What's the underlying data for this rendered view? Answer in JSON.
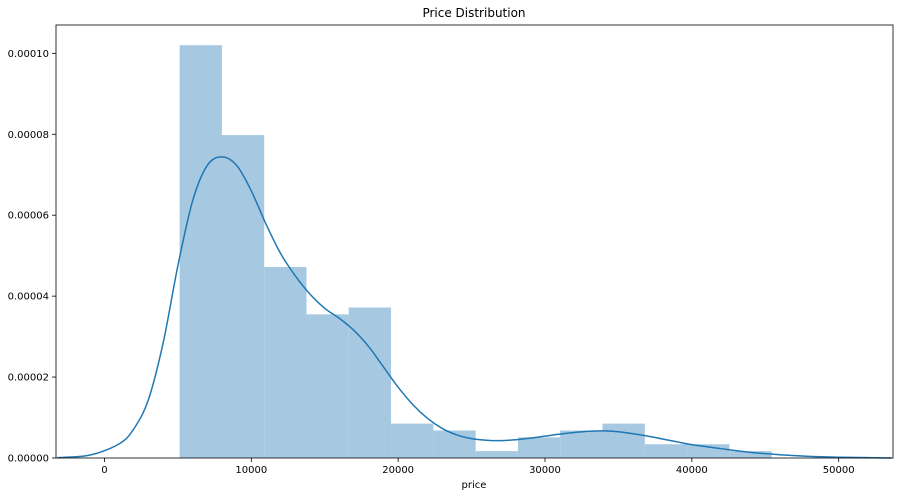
{
  "chart_data": {
    "type": "bar",
    "title": "Price Distribution",
    "xlabel": "price",
    "ylabel": "",
    "xlim": [
      -3300,
      53700
    ],
    "ylim": [
      0,
      0.000107
    ],
    "x_ticks": [
      0,
      10000,
      20000,
      30000,
      40000,
      50000
    ],
    "y_ticks": [
      0,
      2e-05,
      4e-05,
      6e-05,
      8e-05,
      0.0001
    ],
    "x_tick_labels": [
      "0",
      "10000",
      "20000",
      "30000",
      "40000",
      "50000"
    ],
    "y_tick_labels": [
      "0.00000",
      "0.00002",
      "0.00004",
      "0.00006",
      "0.00008",
      "0.00010"
    ],
    "grid": false,
    "histogram": {
      "bin_edges": [
        5118,
        7998,
        10878,
        13758,
        16638,
        19518,
        22398,
        25278,
        28158,
        31038,
        33918,
        36798,
        39678,
        42558,
        45438
      ],
      "density": [
        0.000102,
        7.98e-05,
        4.72e-05,
        3.55e-05,
        3.72e-05,
        8.5e-06,
        6.8e-06,
        1.7e-06,
        5.1e-06,
        6.8e-06,
        8.5e-06,
        3.4e-06,
        3.4e-06,
        1.7e-06
      ],
      "color": "#a6c8e0"
    },
    "kde": {
      "color": "#1f77b4",
      "x": [
        -3200,
        -1000,
        1000,
        2000,
        3000,
        4000,
        5000,
        6000,
        7000,
        8000,
        9000,
        10000,
        11000,
        12000,
        13000,
        14000,
        15000,
        16000,
        17000,
        18000,
        19000,
        20000,
        21000,
        22000,
        23000,
        24000,
        25000,
        26000,
        27000,
        28000,
        29000,
        30000,
        31000,
        32000,
        33000,
        34000,
        35000,
        36000,
        37000,
        38000,
        39000,
        40000,
        42000,
        44000,
        46000,
        48000,
        50000,
        52000,
        53600
      ],
      "y": [
        1e-07,
        7e-07,
        3.5e-06,
        7.2e-06,
        1.45e-05,
        2.85e-05,
        4.75e-05,
        6.35e-05,
        7.23e-05,
        7.44e-05,
        7.23e-05,
        6.6e-05,
        5.78e-05,
        5.05e-05,
        4.5e-05,
        4.05e-05,
        3.7e-05,
        3.45e-05,
        3.15e-05,
        2.75e-05,
        2.25e-05,
        1.75e-05,
        1.32e-05,
        9.8e-06,
        7.3e-06,
        5.7e-06,
        4.8e-06,
        4.4e-06,
        4.3e-06,
        4.5e-06,
        4.9e-06,
        5.4e-06,
        5.9e-06,
        6.3e-06,
        6.6e-06,
        6.7e-06,
        6.5e-06,
        6e-06,
        5.4e-06,
        4.7e-06,
        4e-06,
        3.3e-06,
        2.3e-06,
        1.4e-06,
        8e-07,
        4e-07,
        2e-07,
        1e-07,
        0.0
      ]
    }
  }
}
